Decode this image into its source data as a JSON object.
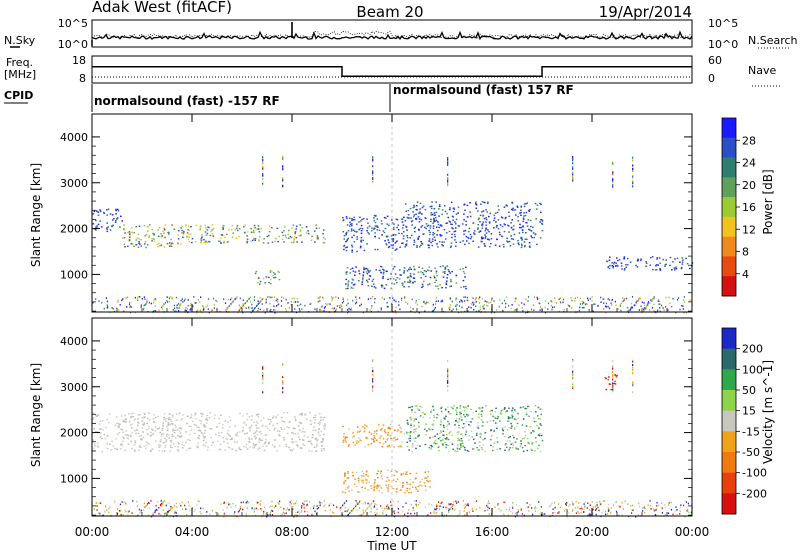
{
  "header": {
    "station": "Adak West (fitACF)",
    "beam": "Beam 20",
    "date": "19/Apr/2014"
  },
  "noise_panel": {
    "left_label": "N.Sky",
    "right_label": "N.Search",
    "left_ticks": [
      "10^5",
      "10^0"
    ],
    "right_ticks": [
      "10^5",
      "10^0"
    ]
  },
  "freq_panel": {
    "left_label_1": "Freq.",
    "left_label_2": "[MHz]",
    "cpid_label": "CPID",
    "left_ticks": [
      "18",
      "8"
    ],
    "right_ticks": [
      "60",
      "0"
    ],
    "right_label": "Nave",
    "frequency_steps": [
      {
        "from_hour": 0,
        "to_hour": 10,
        "mhz": 14
      },
      {
        "from_hour": 10,
        "to_hour": 18,
        "mhz": 10.5
      },
      {
        "from_hour": 18,
        "to_hour": 24,
        "mhz": 14
      }
    ],
    "cpid_segments": [
      {
        "start_hour": 0,
        "label": "normalsound (fast) -157 RF"
      },
      {
        "start_hour": 12,
        "label": "normalsound (fast) 157 RF"
      }
    ]
  },
  "x_axis": {
    "label": "Time UT",
    "ticks": [
      "00:00",
      "04:00",
      "08:00",
      "12:00",
      "16:00",
      "20:00",
      "00:00"
    ],
    "range_hours": [
      0,
      24
    ]
  },
  "chart_data": [
    {
      "type": "heatmap",
      "panel": "power",
      "ylabel": "Slant Range [km]",
      "yticks": [
        "1000",
        "2000",
        "3000",
        "4000"
      ],
      "ylim": [
        180,
        4500
      ],
      "xlim": [
        0,
        24
      ],
      "colorbar_label": "Power [dB]",
      "colorbar_ticks": [
        "4",
        "8",
        "12",
        "16",
        "20",
        "24",
        "28"
      ],
      "colorscale": [
        "#1a1aff",
        "#2a50c8",
        "#2e7d6e",
        "#5fa05a",
        "#9acd32",
        "#f2c21f",
        "#f08a1c",
        "#e84a10",
        "#d41010"
      ],
      "scatter_regions": [
        {
          "t0": 0.0,
          "t1": 1.2,
          "r0": 1950,
          "r1": 2450,
          "dominant": "blue"
        },
        {
          "t0": 1.2,
          "t1": 3.6,
          "r0": 1600,
          "r1": 2100,
          "dominant": "green-orange"
        },
        {
          "t0": 3.6,
          "t1": 9.3,
          "r0": 1700,
          "r1": 2100,
          "dominant": "green"
        },
        {
          "t0": 6.5,
          "t1": 7.5,
          "r0": 800,
          "r1": 1100,
          "dominant": "green"
        },
        {
          "t0": 10.0,
          "t1": 12.5,
          "r0": 1500,
          "r1": 2300,
          "dominant": "blue"
        },
        {
          "t0": 10.0,
          "t1": 15.0,
          "r0": 700,
          "r1": 1200,
          "dominant": "blue-green"
        },
        {
          "t0": 12.5,
          "t1": 18.0,
          "r0": 1600,
          "r1": 2600,
          "dominant": "blue"
        },
        {
          "t0": 20.5,
          "t1": 24.0,
          "r0": 1100,
          "r1": 1400,
          "dominant": "blue"
        }
      ]
    },
    {
      "type": "heatmap",
      "panel": "velocity",
      "ylabel": "Slant Range [km]",
      "yticks": [
        "1000",
        "2000",
        "3000",
        "4000"
      ],
      "ylim": [
        180,
        4500
      ],
      "xlim": [
        0,
        24
      ],
      "colorbar_label": "Velocity [m s^-1]",
      "colorbar_ticks": [
        "200",
        "100",
        "50",
        "15",
        "-15",
        "-50",
        "-100",
        "-200"
      ],
      "colorscale": [
        "#1a28c8",
        "#2a6a6a",
        "#2fa84a",
        "#8cd44a",
        "#c8c8c0",
        "#f2a21a",
        "#f07a10",
        "#e8400c",
        "#d81010"
      ],
      "scatter_regions": [
        {
          "t0": 0.0,
          "t1": 9.3,
          "r0": 1600,
          "r1": 2450,
          "dominant": "gray"
        },
        {
          "t0": 10.0,
          "t1": 12.5,
          "r0": 1700,
          "r1": 2200,
          "dominant": "orange"
        },
        {
          "t0": 10.0,
          "t1": 13.5,
          "r0": 700,
          "r1": 1200,
          "dominant": "orange"
        },
        {
          "t0": 12.5,
          "t1": 18.0,
          "r0": 1600,
          "r1": 2600,
          "dominant": "green"
        },
        {
          "t0": 20.5,
          "t1": 21.0,
          "r0": 2900,
          "r1": 3300,
          "dominant": "red"
        }
      ]
    }
  ]
}
